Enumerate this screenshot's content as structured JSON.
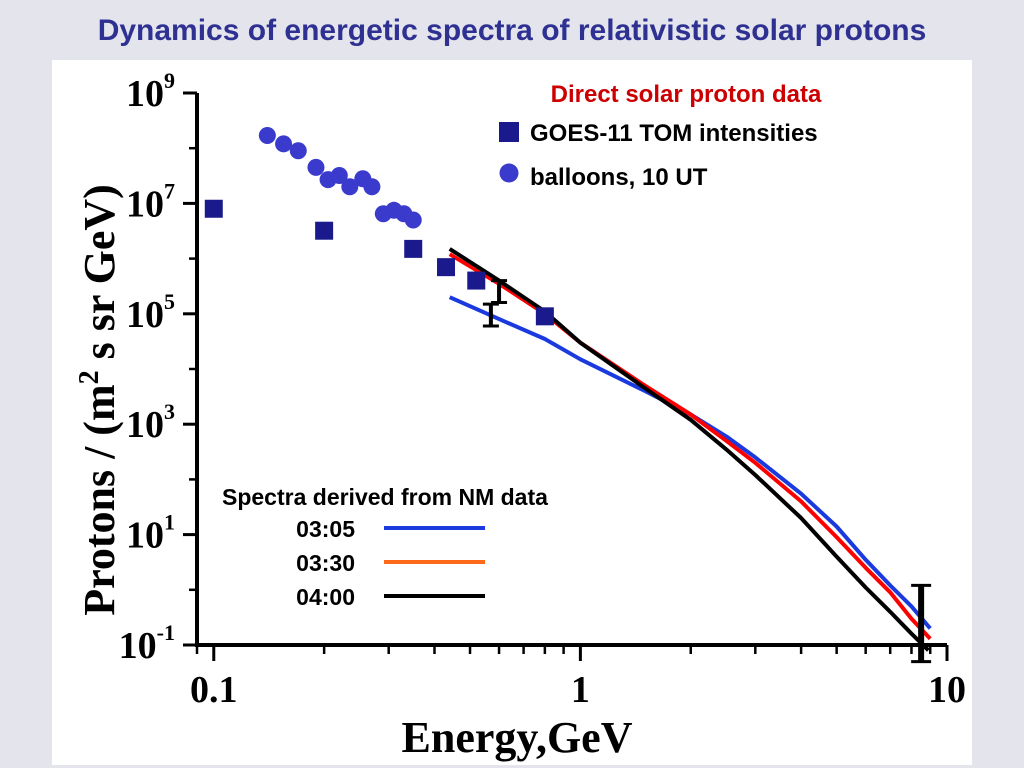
{
  "slide": {
    "title": "Dynamics of energetic spectra of relativistic solar protons"
  },
  "chart_data": {
    "type": "scatter",
    "xlabel": "Energy,GeV",
    "ylabel_main": "Protons / (m",
    "ylabel_sup": "2",
    "ylabel_tail": " s sr GeV)",
    "xscale": "log",
    "yscale": "log",
    "xlim": [
      0.09,
      10
    ],
    "ylim": [
      0.1,
      1000000000
    ],
    "grid": false,
    "x_ticks": [
      {
        "value": 0.1,
        "label": "0.1"
      },
      {
        "value": 1,
        "label": "1"
      },
      {
        "value": 10,
        "label": "10"
      }
    ],
    "y_ticks": [
      {
        "value": 1000000000,
        "base": "10",
        "exp": "9"
      },
      {
        "value": 10000000,
        "base": "10",
        "exp": "7"
      },
      {
        "value": 100000,
        "base": "10",
        "exp": "5"
      },
      {
        "value": 1000,
        "base": "10",
        "exp": "3"
      },
      {
        "value": 10,
        "base": "10",
        "exp": "1"
      },
      {
        "value": 0.1,
        "base": "10",
        "exp": "-1"
      }
    ],
    "legend_points": {
      "heading": "Direct solar proton data",
      "heading_color": "#cc0000",
      "items": [
        {
          "label": "GOES-11 TOM  intensities",
          "marker": "square",
          "color": "#1a1a8c"
        },
        {
          "label": "balloons, 10 UT",
          "marker": "circle",
          "color": "#3a3acc"
        }
      ]
    },
    "legend_lines": {
      "heading": "Spectra derived from NM data",
      "items": [
        {
          "label": "03:05",
          "color": "#1a3ae0"
        },
        {
          "label": "03:30",
          "color": "#ff6a1a"
        },
        {
          "label": "04:00",
          "color": "#000000"
        }
      ]
    },
    "series": [
      {
        "name": "GOES-11 TOM  intensities",
        "kind": "points",
        "marker": "square",
        "color": "#1a1a8c",
        "x": [
          0.1,
          0.2,
          0.35,
          0.43,
          0.52,
          0.8
        ],
        "y": [
          8000000,
          3200000,
          1500000,
          700000,
          400000,
          90000
        ]
      },
      {
        "name": "balloons, 10 UT",
        "kind": "points",
        "marker": "circle",
        "color": "#3a3acc",
        "x": [
          0.14,
          0.155,
          0.17,
          0.19,
          0.205,
          0.22,
          0.235,
          0.255,
          0.27,
          0.29,
          0.31,
          0.33,
          0.35
        ],
        "y": [
          170000000,
          120000000,
          90000000,
          45000000,
          27000000,
          32000000,
          20000000,
          28000000,
          20000000,
          6500000,
          7500000,
          6500000,
          5000000
        ]
      },
      {
        "name": "03:05",
        "kind": "line",
        "color": "#1a3ae0",
        "x": [
          0.44,
          0.6,
          0.8,
          1.0,
          1.5,
          2.0,
          2.5,
          3.0,
          4.0,
          5.0,
          6.0,
          7.0,
          8.0,
          9.0
        ],
        "y": [
          200000,
          80000,
          35000,
          15000,
          4000,
          1500,
          600,
          250,
          55,
          14,
          3.5,
          1.2,
          0.5,
          0.2
        ]
      },
      {
        "name": "03:30",
        "kind": "line",
        "color": "#ff0000",
        "x": [
          0.44,
          0.6,
          0.8,
          1.0,
          1.5,
          2.0,
          2.5,
          3.0,
          4.0,
          5.0,
          6.0,
          7.0,
          8.0,
          9.0
        ],
        "y": [
          1200000,
          350000,
          100000,
          30000,
          5000,
          1500,
          500,
          200,
          40,
          9,
          2.5,
          0.9,
          0.3,
          0.13
        ]
      },
      {
        "name": "04:00",
        "kind": "line",
        "color": "#000000",
        "x": [
          0.44,
          0.6,
          0.8,
          1.0,
          1.5,
          2.0,
          2.5,
          3.0,
          4.0,
          5.0,
          6.0,
          7.0,
          8.0,
          8.9
        ],
        "y": [
          1500000,
          400000,
          110000,
          30000,
          4500,
          1200,
          350,
          120,
          20,
          4,
          1.1,
          0.4,
          0.16,
          0.08
        ]
      }
    ],
    "error_bars": [
      {
        "x": 0.6,
        "y": 250000,
        "ylow": 160000,
        "yhigh": 400000
      },
      {
        "x": 0.57,
        "y": 100000,
        "ylow": 60000,
        "yhigh": 150000
      },
      {
        "x": 8.5,
        "y": 0.25,
        "ylow": 0.05,
        "yhigh": 1.2
      }
    ]
  }
}
